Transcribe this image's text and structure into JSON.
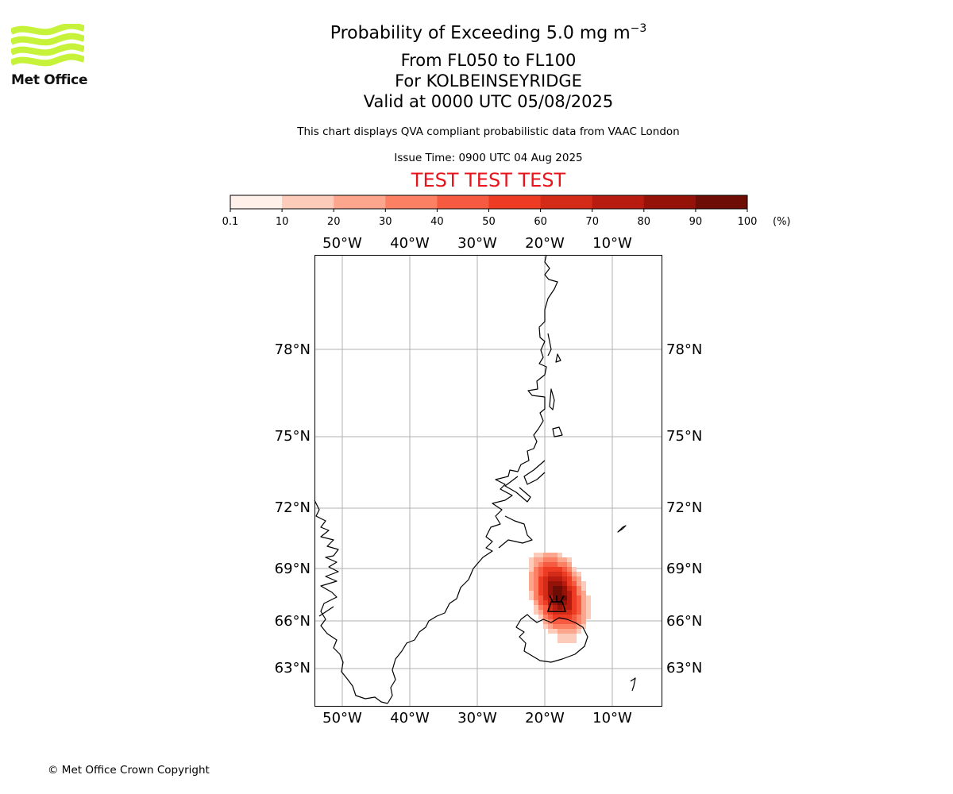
{
  "logo": {
    "text": "Met Office",
    "color": "#c6f23a"
  },
  "header": {
    "title_prefix": "Probability of Exceeding 5.0 mg m",
    "title_exponent": "−3",
    "level_range": "From FL050 to FL100",
    "location": "For KOLBEINSEYRIDGE",
    "valid_time": "Valid at 0000 UTC 05/08/2025",
    "description": "This chart displays QVA compliant probabilistic data from VAAC London",
    "issue_time": "Issue Time: 0900 UTC 04 Aug 2025",
    "test_banner": "TEST TEST TEST",
    "test_banner_color": "#e8141b"
  },
  "colorbar": {
    "unit_label": "(%)",
    "ticks": [
      "0.1",
      "10",
      "20",
      "30",
      "40",
      "50",
      "60",
      "70",
      "80",
      "90",
      "100"
    ],
    "colors": [
      "#fff0ea",
      "#fdcbb9",
      "#fca68d",
      "#fb8064",
      "#f65a40",
      "#ed3b24",
      "#d42a18",
      "#b81c10",
      "#951209",
      "#6e0c06"
    ]
  },
  "map": {
    "lon_labels": [
      "50°W",
      "40°W",
      "30°W",
      "20°W",
      "10°W"
    ],
    "lat_labels": [
      "78°N",
      "75°N",
      "72°N",
      "69°N",
      "66°N",
      "63°N"
    ]
  },
  "footer": {
    "copyright": "© Met Office Crown Copyright"
  }
}
